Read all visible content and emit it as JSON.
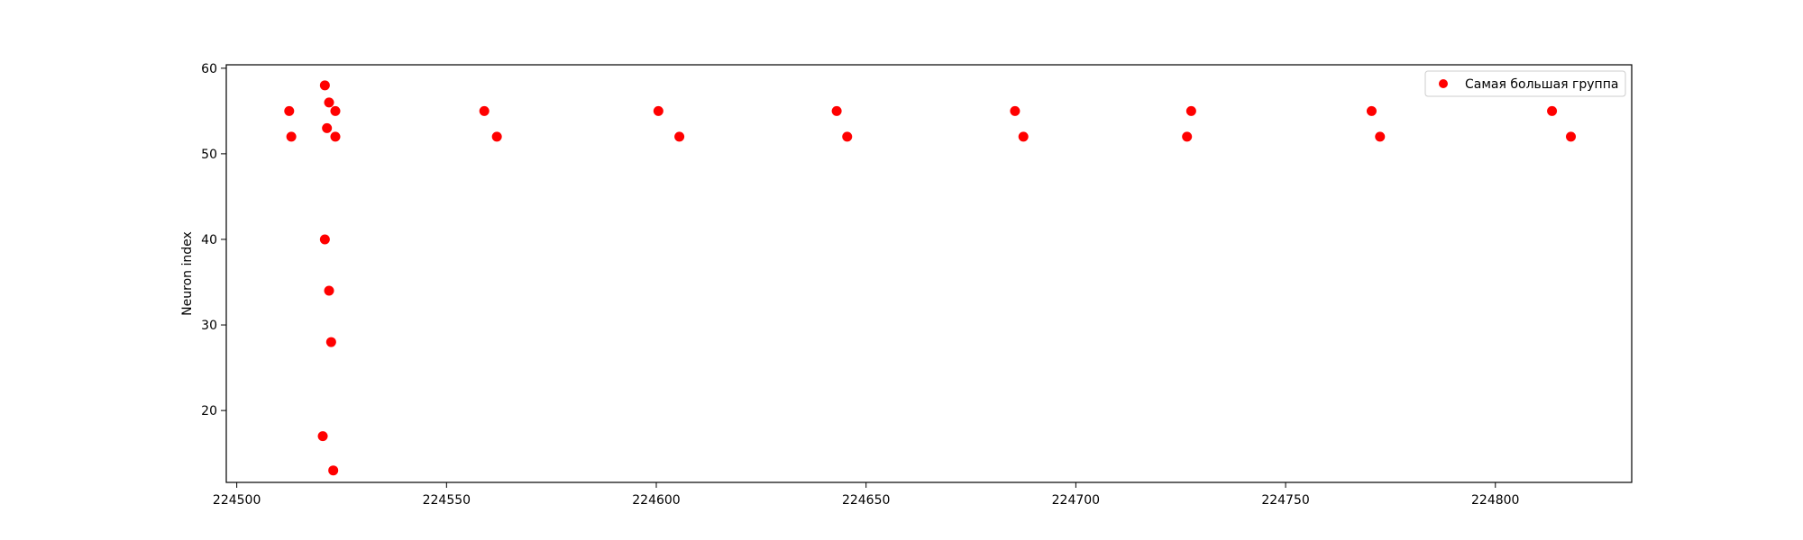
{
  "chart_data": {
    "type": "scatter",
    "title": "",
    "xlabel": "",
    "ylabel": "Neuron index",
    "xlim": [
      224497.5,
      224832.5
    ],
    "ylim": [
      11.6,
      60.4
    ],
    "xticks": [
      224500,
      224550,
      224600,
      224650,
      224700,
      224750,
      224800
    ],
    "yticks": [
      20,
      30,
      40,
      50,
      60
    ],
    "grid": false,
    "legend_position": "top-right",
    "series": [
      {
        "name": "Самая большая группа",
        "color": "#ff0000",
        "points": [
          [
            224512.5,
            55
          ],
          [
            224513,
            52
          ],
          [
            224520.5,
            17
          ],
          [
            224521,
            58
          ],
          [
            224521,
            40
          ],
          [
            224521.5,
            53
          ],
          [
            224522,
            56
          ],
          [
            224522,
            34
          ],
          [
            224522.5,
            28
          ],
          [
            224523,
            13
          ],
          [
            224523.5,
            55
          ],
          [
            224523.5,
            52
          ],
          [
            224559,
            55
          ],
          [
            224562,
            52
          ],
          [
            224600.5,
            55
          ],
          [
            224605.5,
            52
          ],
          [
            224643,
            55
          ],
          [
            224645.5,
            52
          ],
          [
            224685.5,
            55
          ],
          [
            224687.5,
            52
          ],
          [
            224726.5,
            52
          ],
          [
            224727.5,
            55
          ],
          [
            224770.5,
            55
          ],
          [
            224772.5,
            52
          ],
          [
            224813.5,
            55
          ],
          [
            224818,
            52
          ]
        ]
      }
    ]
  }
}
